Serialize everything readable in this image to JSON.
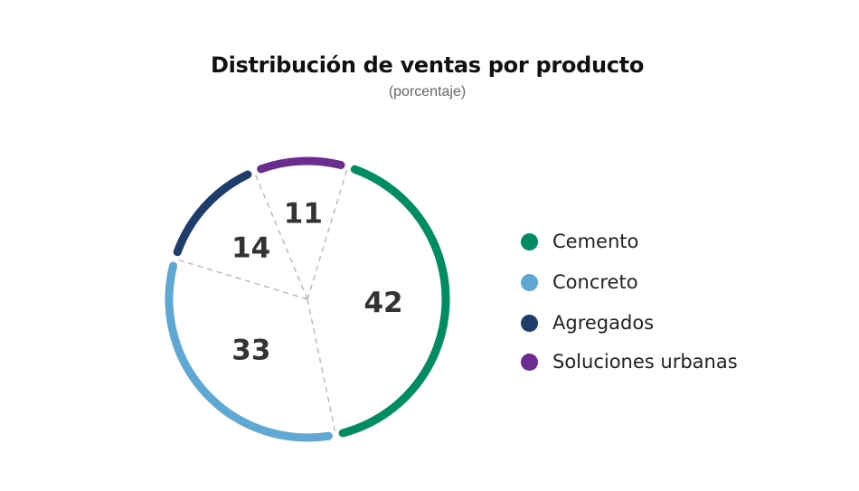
{
  "title": "Distribución de ventas por producto",
  "subtitle": "(porcentaje)",
  "chart_data": {
    "type": "pie",
    "title": "Distribución de ventas por producto",
    "subtitle": "(porcentaje)",
    "categories": [
      "Cemento",
      "Concreto",
      "Agregados",
      "Soluciones urbanas"
    ],
    "values": [
      42,
      33,
      14,
      11
    ],
    "colors": [
      "#008c62",
      "#5ea8d3",
      "#1f3d6a",
      "#6a2c8f"
    ],
    "legend_position": "right",
    "style": "outer arcs with dashed radial dividers"
  }
}
